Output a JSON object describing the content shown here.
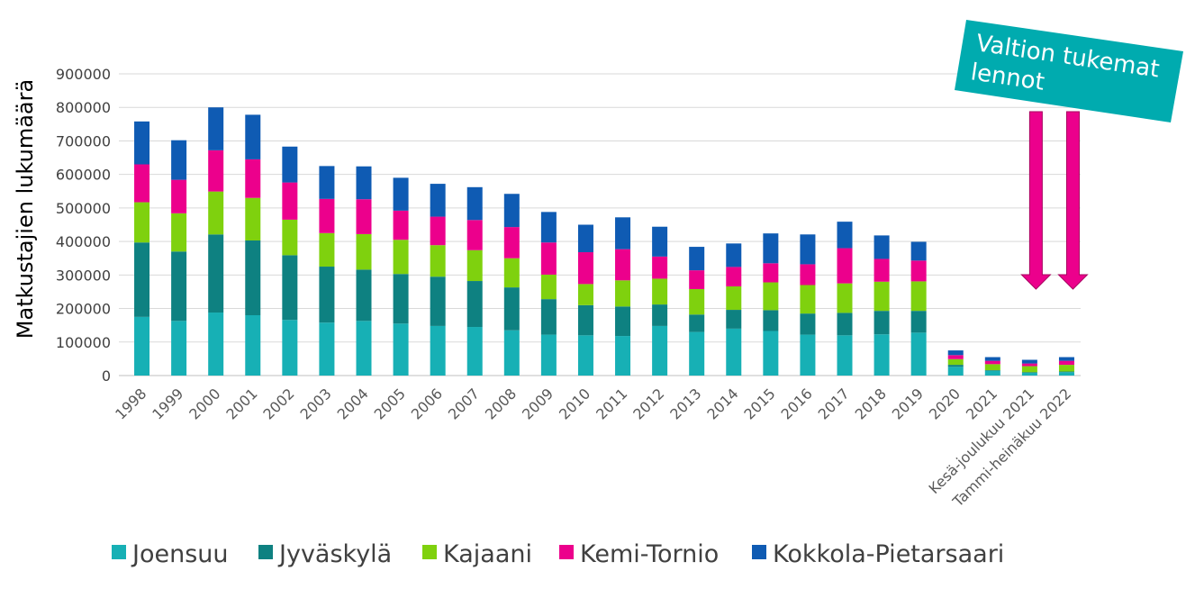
{
  "chart_data": {
    "type": "bar",
    "stacked": true,
    "title": "",
    "xlabel": "",
    "ylabel": "Matkustajien lukumäärä",
    "ylim": [
      0,
      900000
    ],
    "yticks": [
      "0",
      "100000",
      "200000",
      "300000",
      "400000",
      "500000",
      "600000",
      "700000",
      "800000",
      "900000"
    ],
    "grid": true,
    "legend_position": "bottom",
    "categories": [
      "1998",
      "1999",
      "2000",
      "2001",
      "2002",
      "2003",
      "2004",
      "2005",
      "2006",
      "2007",
      "2008",
      "2009",
      "2010",
      "2011",
      "2012",
      "2013",
      "2014",
      "2015",
      "2016",
      "2017",
      "2018",
      "2019",
      "2020",
      "2021",
      "Kesä-joulukuu 2021",
      "Tammi-heinäkuu 2022"
    ],
    "series": [
      {
        "name": "Joensuu",
        "color": "#17B0B5",
        "values": [
          175000,
          163000,
          188000,
          180000,
          166000,
          158000,
          163000,
          155000,
          148000,
          145000,
          135000,
          122000,
          120000,
          118000,
          148000,
          130000,
          140000,
          133000,
          122000,
          120000,
          123000,
          128000,
          26000,
          14000,
          8000,
          10000
        ]
      },
      {
        "name": "Jyväskylä",
        "color": "#0E8181",
        "values": [
          222000,
          207000,
          233000,
          223000,
          193000,
          167000,
          153000,
          148000,
          147000,
          137000,
          128000,
          106000,
          90000,
          88000,
          64000,
          52000,
          56000,
          62000,
          63000,
          67000,
          70000,
          65000,
          6000,
          2000,
          2000,
          2000
        ]
      },
      {
        "name": "Kajaani",
        "color": "#7FD10E",
        "values": [
          120000,
          114000,
          128000,
          127000,
          106000,
          100000,
          106000,
          102000,
          94000,
          92000,
          87000,
          73000,
          63000,
          78000,
          77000,
          76000,
          70000,
          83000,
          85000,
          88000,
          87000,
          88000,
          17000,
          18000,
          18000,
          20000
        ]
      },
      {
        "name": "Kemi-Tornio",
        "color": "#EC008C",
        "values": [
          113000,
          100000,
          123000,
          115000,
          111000,
          102000,
          104000,
          87000,
          85000,
          90000,
          93000,
          96000,
          95000,
          93000,
          66000,
          56000,
          58000,
          57000,
          62000,
          105000,
          68000,
          62000,
          12000,
          10000,
          8000,
          12000
        ]
      },
      {
        "name": "Kokkola-Pietarsaari",
        "color": "#0F5BB3",
        "values": [
          128000,
          118000,
          128000,
          133000,
          107000,
          98000,
          98000,
          98000,
          98000,
          98000,
          99000,
          91000,
          82000,
          95000,
          89000,
          70000,
          70000,
          89000,
          89000,
          79000,
          70000,
          56000,
          14000,
          11000,
          11000,
          11000
        ]
      }
    ],
    "annotation": {
      "text_lines": [
        "Valtion tukemat",
        "lennot"
      ],
      "color": "#00ABAF",
      "arrow_color": "#EC008C",
      "arrow_targets": [
        "Kesä-joulukuu 2021",
        "Tammi-heinäkuu 2022"
      ]
    }
  }
}
